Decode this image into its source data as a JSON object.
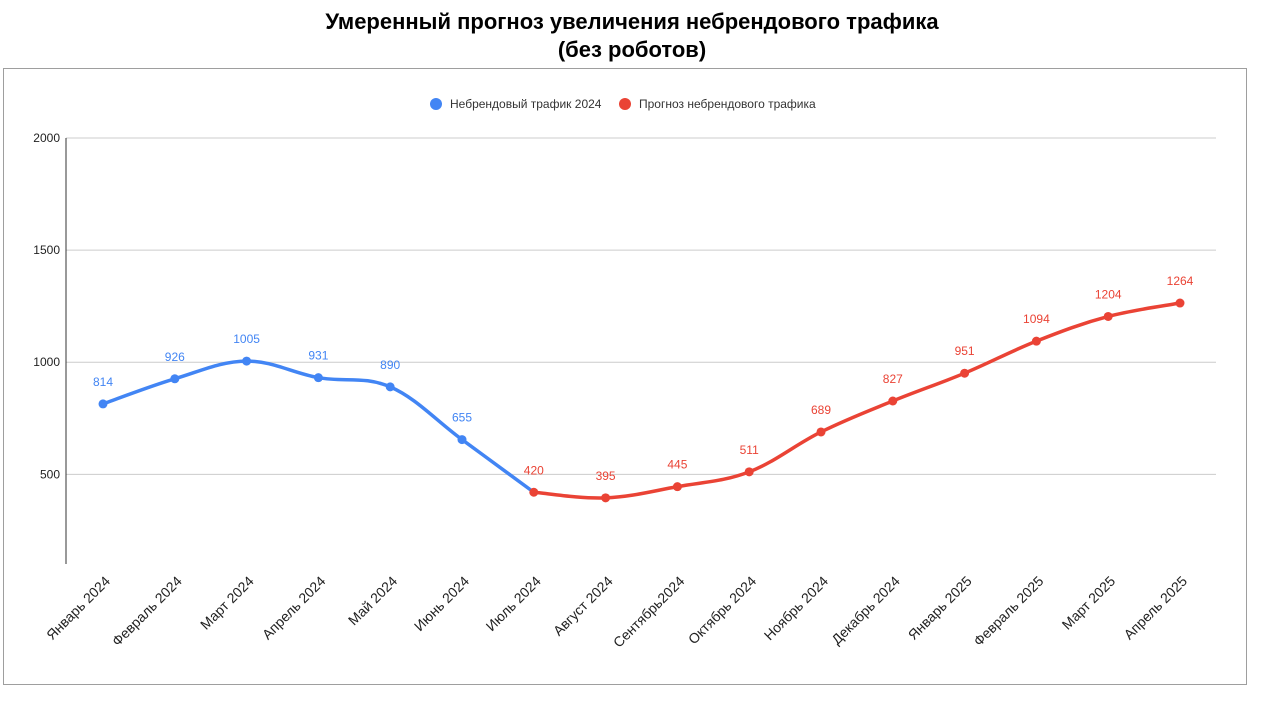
{
  "chart_data": {
    "type": "line",
    "title_line1": "Умеренный прогноз увеличения небрендового трафика",
    "title_line2": "(без роботов)",
    "xlabel": "",
    "ylabel": "",
    "ylim": [
      100,
      2000
    ],
    "yticks": [
      500,
      1000,
      1500,
      2000
    ],
    "grid": true,
    "legend_position": "top",
    "categories": [
      "Январь 2024",
      "Февраль 2024",
      "Март 2024",
      "Апрель 2024",
      "Май 2024",
      "Июнь 2024",
      "Июль 2024",
      "Август 2024",
      "Сентябрь2024",
      "Октябрь 2024",
      "Ноябрь 2024",
      "Декабрь 2024",
      "Январь 2025",
      "Февраль 2025",
      "Март 2025",
      "Апрель 2025"
    ],
    "series": [
      {
        "name": "Небрендовый трафик 2024",
        "color": "#4285f4",
        "values": [
          814,
          926,
          1005,
          931,
          890,
          655,
          null,
          null,
          null,
          null,
          null,
          null,
          null,
          null,
          null,
          null
        ],
        "connect_to_index": 6
      },
      {
        "name": "Прогноз небрендового трафика",
        "color": "#ea4335",
        "values": [
          null,
          null,
          null,
          null,
          null,
          null,
          420,
          395,
          445,
          511,
          689,
          827,
          951,
          1094,
          1204,
          1264
        ]
      }
    ]
  }
}
